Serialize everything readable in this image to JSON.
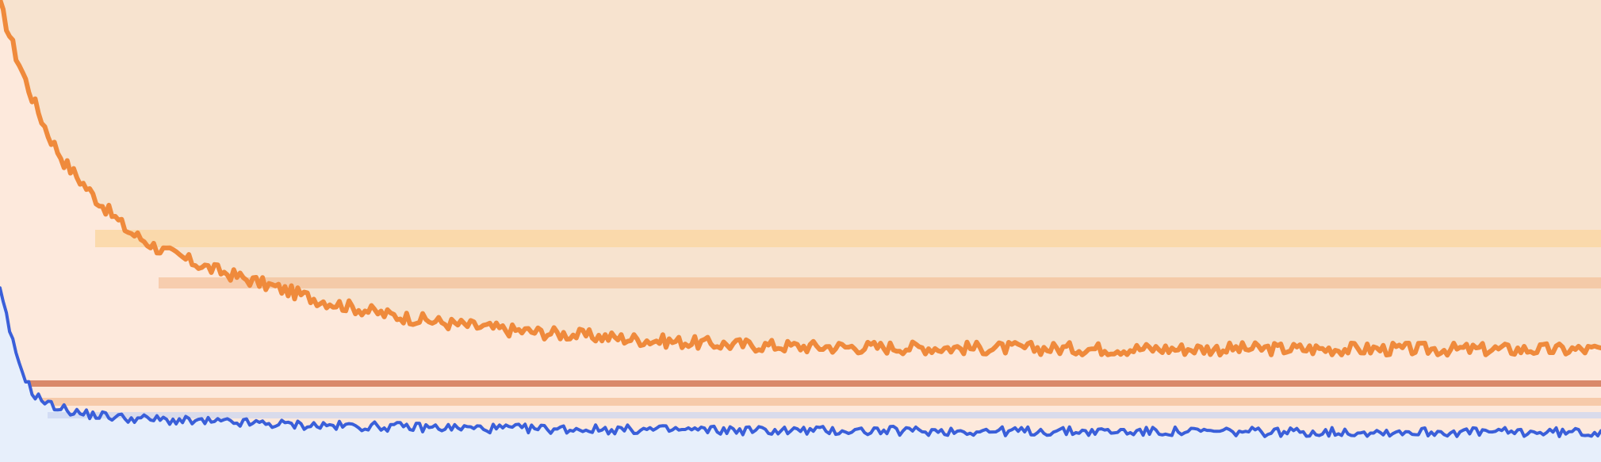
{
  "chart_data": {
    "type": "area",
    "title": "",
    "xlabel": "",
    "ylabel": "",
    "xlim": [
      0,
      1000
    ],
    "ylim": [
      0,
      100
    ],
    "grid": false,
    "legend": "none",
    "colors": {
      "background": "#fbf3ea",
      "upper_fill": "#f7e3cf",
      "orange_line": "#ef8a3c",
      "orange_fill": "#fde9dc",
      "blue_line": "#3a5fd9",
      "blue_fill": "#e7effb",
      "band_light": "#fad7a5",
      "band_mid": "#f2b689",
      "band_rule": "#d9896a",
      "band_blue": "#c9d4f1"
    },
    "series": [
      {
        "color": "#ef8a3c",
        "x": [
          0,
          10,
          20,
          30,
          40,
          60,
          80,
          100,
          130,
          160,
          200,
          240,
          280,
          320,
          360,
          400,
          450,
          500,
          600,
          700,
          800,
          900,
          1000
        ],
        "values": [
          99,
          88,
          79,
          71,
          65,
          57,
          50,
          46,
          42,
          39,
          35,
          32,
          30,
          28.5,
          27.5,
          26.5,
          25.5,
          25,
          24.7,
          24.5,
          24.5,
          24.4,
          24.3
        ],
        "noise": 1.4
      },
      {
        "color": "#3a5fd9",
        "x": [
          0,
          5,
          10,
          20,
          30,
          50,
          80,
          120,
          200,
          300,
          400,
          500,
          600,
          700,
          800,
          900,
          1000
        ],
        "values": [
          37,
          30,
          23,
          15,
          12.5,
          10.5,
          9.5,
          8.8,
          7.9,
          7.3,
          7.0,
          6.8,
          6.7,
          6.6,
          6.5,
          6.5,
          6.4
        ],
        "noise": 1.0
      }
    ]
  }
}
